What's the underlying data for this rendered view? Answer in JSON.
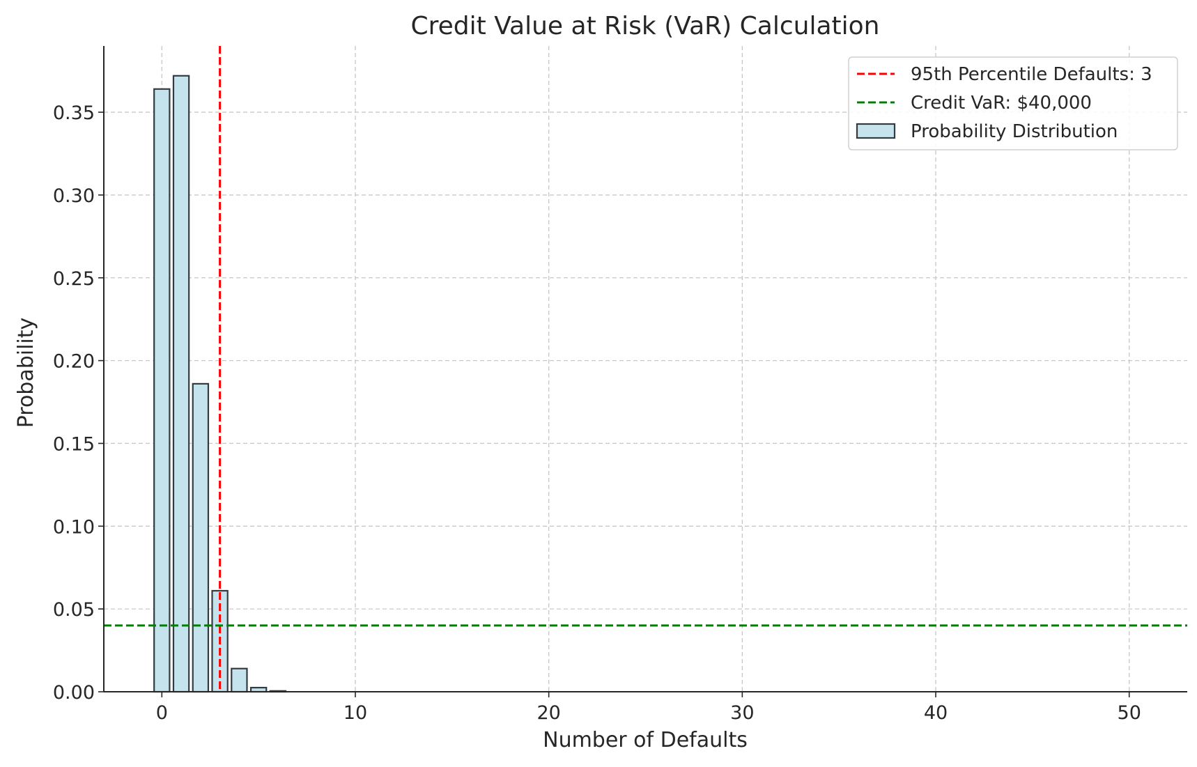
{
  "chart_data": {
    "type": "bar",
    "title": "Credit Value at Risk (VaR) Calculation",
    "xlabel": "Number of Defaults",
    "ylabel": "Probability",
    "xlim": [
      -3,
      53
    ],
    "ylim": [
      0,
      0.39
    ],
    "x_ticks": [
      0,
      10,
      20,
      30,
      40,
      50
    ],
    "x_tick_labels": [
      "0",
      "10",
      "20",
      "30",
      "40",
      "50"
    ],
    "y_ticks": [
      0,
      0.05,
      0.1,
      0.15,
      0.2,
      0.25,
      0.3,
      0.35
    ],
    "y_tick_labels": [
      "0.00",
      "0.05",
      "0.10",
      "0.15",
      "0.20",
      "0.25",
      "0.30",
      "0.35"
    ],
    "grid": true,
    "legend_position": "top-right",
    "series": [
      {
        "name": "Probability Distribution",
        "kind": "bar",
        "x": [
          0,
          1,
          2,
          3,
          4,
          5,
          6
        ],
        "values": [
          0.364,
          0.372,
          0.186,
          0.061,
          0.014,
          0.0025,
          0.0005
        ],
        "fill": "#c5e3ed",
        "edge": "#333b40"
      }
    ],
    "reference_lines": [
      {
        "name": "95th Percentile Defaults: 3",
        "orientation": "vertical",
        "value": 3,
        "color": "#ff0000"
      },
      {
        "name": "Credit VaR: $40,000",
        "orientation": "horizontal",
        "value": 0.04,
        "color": "#008000"
      }
    ],
    "legend": [
      {
        "label": "95th Percentile Defaults: 3",
        "kind": "dashed-line",
        "color": "#ff0000"
      },
      {
        "label": "Credit VaR: $40,000",
        "kind": "dashed-line",
        "color": "#008000"
      },
      {
        "label": "Probability Distribution",
        "kind": "patch",
        "color": "#c5e3ed"
      }
    ]
  }
}
